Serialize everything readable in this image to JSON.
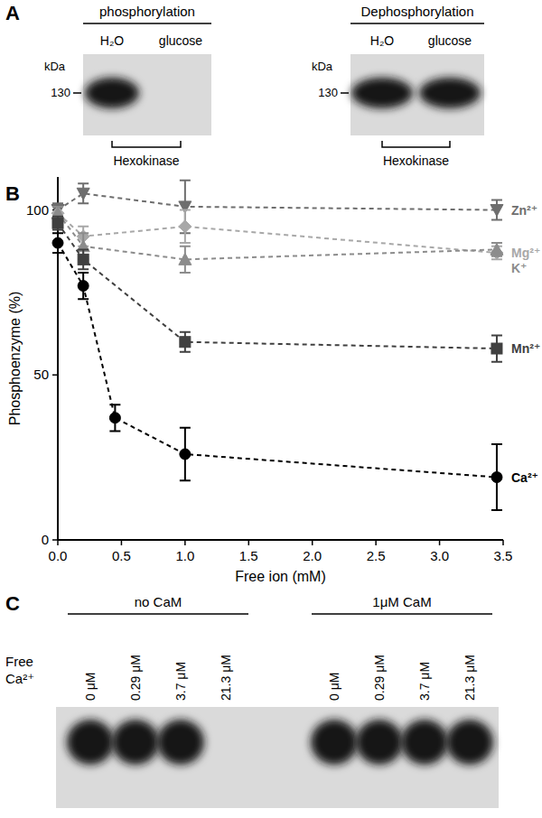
{
  "panel_a": {
    "label": "A",
    "gels": [
      {
        "title": "phosphorylation",
        "unit": "kDa",
        "marker": 130,
        "bracket": "Hexokinase",
        "lanes": [
          {
            "label": "H₂O",
            "band": true
          },
          {
            "label": "glucose",
            "band": false
          }
        ]
      },
      {
        "title": "Dephosphorylation",
        "unit": "kDa",
        "marker": 130,
        "bracket": "Hexokinase",
        "lanes": [
          {
            "label": "H₂O",
            "band": true
          },
          {
            "label": "glucose",
            "band": true
          }
        ]
      }
    ]
  },
  "panel_b_label": "B",
  "chart_data": {
    "type": "line",
    "x_label": "Free ion (mM)",
    "y_label": "Phosphoenzyme (%)",
    "xlim": [
      0,
      3.5
    ],
    "xticks": [
      {
        "value": 0,
        "label": "0.0"
      },
      {
        "value": 0.5,
        "label": "0.5"
      },
      {
        "value": 1,
        "label": "1.0"
      },
      {
        "value": 1.5,
        "label": "1.5"
      },
      {
        "value": 2,
        "label": "2.0"
      },
      {
        "value": 2.5,
        "label": "2.5"
      },
      {
        "value": 3,
        "label": "3.0"
      },
      {
        "value": 3.5,
        "label": "3.5"
      }
    ],
    "ylim": [
      0,
      110
    ],
    "yticks": [
      0,
      50,
      100
    ],
    "grid": false,
    "line_style": "dashed",
    "series": [
      {
        "name": "Zn²⁺",
        "color": "#6e6e6e",
        "marker": "triangle-down",
        "x": [
          0,
          0.2,
          1.0,
          3.45
        ],
        "values": [
          100,
          105,
          101,
          100
        ],
        "errors": [
          2,
          3,
          8,
          3
        ]
      },
      {
        "name": "Mg²⁺",
        "color": "#a8a8a8",
        "marker": "diamond",
        "x": [
          0,
          0.2,
          1.0,
          3.45
        ],
        "values": [
          99,
          92,
          95,
          87
        ],
        "errors": [
          2,
          3,
          5,
          2
        ]
      },
      {
        "name": "K⁺",
        "color": "#8c8c8c",
        "marker": "triangle-up",
        "x": [
          0,
          0.2,
          1.0,
          3.45
        ],
        "values": [
          99,
          89,
          85,
          88
        ],
        "errors": [
          2,
          4,
          4,
          2
        ]
      },
      {
        "name": "Mn²⁺",
        "color": "#404040",
        "marker": "square",
        "x": [
          0,
          0.2,
          1.0,
          3.45
        ],
        "values": [
          96,
          85,
          60,
          58
        ],
        "errors": [
          2,
          3,
          3,
          4
        ]
      },
      {
        "name": "Ca²⁺",
        "color": "#000000",
        "marker": "circle",
        "x": [
          0,
          0.2,
          0.45,
          1.0,
          3.45
        ],
        "values": [
          90,
          77,
          37,
          26,
          19
        ],
        "errors": [
          3,
          4,
          4,
          8,
          10
        ]
      }
    ]
  },
  "panel_c": {
    "label": "C",
    "row_label": [
      "Free",
      "Ca²⁺"
    ],
    "groups": [
      {
        "title": "no CaM",
        "lanes": [
          {
            "label": "0 μM",
            "band": true
          },
          {
            "label": "0.29 μM",
            "band": true
          },
          {
            "label": "3.7 μM",
            "band": true
          },
          {
            "label": "21.3 μM",
            "band": false
          }
        ]
      },
      {
        "title": "1μM CaM",
        "lanes": [
          {
            "label": "0 μM",
            "band": true
          },
          {
            "label": "0.29 μM",
            "band": true
          },
          {
            "label": "3.7 μM",
            "band": true
          },
          {
            "label": "21.3 μM",
            "band": true
          }
        ]
      }
    ]
  }
}
